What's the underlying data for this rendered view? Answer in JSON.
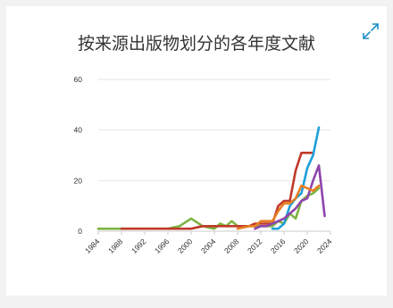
{
  "chart_data": {
    "type": "line",
    "title": "按来源出版物划分的各年度文献",
    "ylim": [
      0,
      60
    ],
    "yticks": [
      0,
      20,
      40,
      60
    ],
    "xlim": [
      1984,
      2024
    ],
    "xticks": [
      1984,
      1988,
      1992,
      1996,
      2000,
      2004,
      2008,
      2012,
      2016,
      2020,
      2024
    ],
    "grid": true,
    "legend": "none",
    "series": [
      {
        "color": "#7cb342",
        "points": [
          [
            1984,
            1
          ],
          [
            1988,
            1
          ],
          [
            1996,
            1
          ],
          [
            1998,
            2
          ],
          [
            2000,
            5
          ],
          [
            2002,
            2
          ],
          [
            2004,
            1
          ],
          [
            2005,
            3
          ],
          [
            2006,
            2
          ],
          [
            2007,
            4
          ],
          [
            2008,
            2
          ],
          [
            2010,
            2
          ],
          [
            2012,
            2
          ],
          [
            2014,
            2
          ],
          [
            2015,
            4
          ],
          [
            2016,
            3
          ],
          [
            2017,
            7
          ],
          [
            2018,
            5
          ],
          [
            2019,
            12
          ],
          [
            2020,
            14
          ],
          [
            2021,
            15
          ],
          [
            2022,
            17
          ]
        ]
      },
      {
        "color": "#c0392b",
        "points": [
          [
            1988,
            1
          ],
          [
            2000,
            1
          ],
          [
            2002,
            2
          ],
          [
            2004,
            2
          ],
          [
            2006,
            2
          ],
          [
            2008,
            2
          ],
          [
            2010,
            2
          ],
          [
            2011,
            3
          ],
          [
            2013,
            3
          ],
          [
            2014,
            3
          ],
          [
            2015,
            10
          ],
          [
            2016,
            12
          ],
          [
            2017,
            12
          ],
          [
            2018,
            24
          ],
          [
            2019,
            31
          ],
          [
            2020,
            31
          ],
          [
            2021,
            31
          ]
        ]
      },
      {
        "color": "#1e9fd9",
        "points": [
          [
            2014,
            1
          ],
          [
            2015,
            1
          ],
          [
            2016,
            3
          ],
          [
            2017,
            10
          ],
          [
            2018,
            13
          ],
          [
            2019,
            15
          ],
          [
            2020,
            25
          ],
          [
            2021,
            30
          ],
          [
            2022,
            41
          ]
        ]
      },
      {
        "color": "#8e44ad",
        "points": [
          [
            2011,
            1
          ],
          [
            2012,
            2
          ],
          [
            2013,
            2
          ],
          [
            2014,
            3
          ],
          [
            2015,
            4
          ],
          [
            2016,
            5
          ],
          [
            2017,
            7
          ],
          [
            2018,
            9
          ],
          [
            2019,
            12
          ],
          [
            2020,
            13
          ],
          [
            2021,
            20
          ],
          [
            2022,
            26
          ],
          [
            2023,
            6
          ]
        ]
      },
      {
        "color": "#e67e22",
        "points": [
          [
            2008,
            1
          ],
          [
            2010,
            2
          ],
          [
            2011,
            2
          ],
          [
            2012,
            4
          ],
          [
            2014,
            4
          ],
          [
            2015,
            8
          ],
          [
            2016,
            11
          ],
          [
            2017,
            11
          ],
          [
            2018,
            13
          ],
          [
            2019,
            18
          ],
          [
            2020,
            17
          ],
          [
            2021,
            16
          ],
          [
            2022,
            18
          ]
        ]
      }
    ]
  },
  "icons": {
    "expand": "expand-arrows-icon"
  },
  "colors": {
    "grid": "#e6e6e6",
    "axis": "#cccccc",
    "expand_icon": "#1e8fc6"
  }
}
